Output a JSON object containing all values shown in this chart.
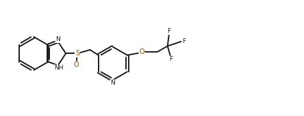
{
  "bg_color": "#ffffff",
  "line_color": "#1a1a1a",
  "n_color": "#1a1a1a",
  "s_color": "#8B4500",
  "o_color": "#8B4500",
  "line_width": 1.4,
  "figsize": [
    4.44,
    1.7
  ],
  "dpi": 100,
  "xlim": [
    0,
    100
  ],
  "ylim": [
    0,
    38
  ]
}
